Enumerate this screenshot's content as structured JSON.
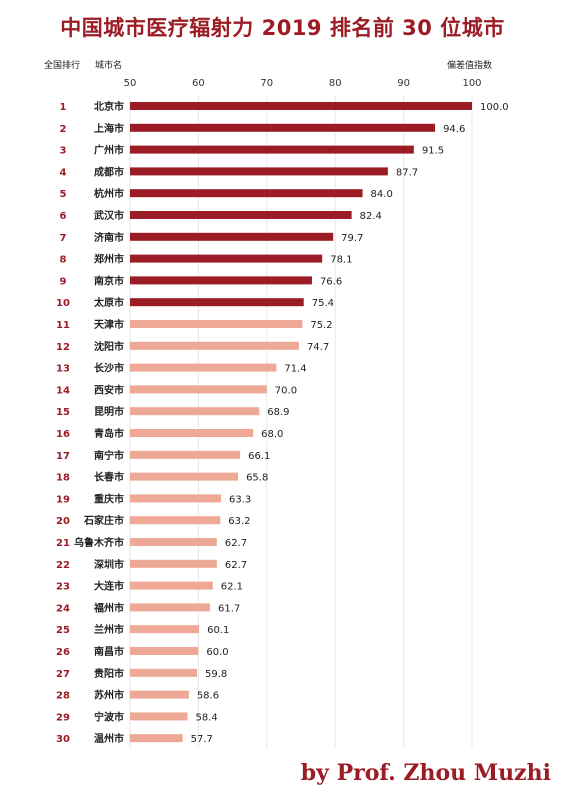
{
  "title": "中国城市医疗辐射力 2019 排名前 30 位城市",
  "headers": {
    "rank": "全国排行",
    "city": "城市名",
    "index": "偏差值指数"
  },
  "signature": "by Prof. Zhou Muzhi",
  "colors": {
    "top10": "#9b1c24",
    "rest": "#eda896",
    "rank_text": "#9b1c24"
  },
  "chart_data": {
    "type": "bar",
    "orientation": "horizontal",
    "title": "中国城市医疗辐射力 2019 排名前 30 位城市",
    "xlim": [
      50,
      100
    ],
    "xticks": [
      50,
      60,
      70,
      80,
      90,
      100
    ],
    "grid": true,
    "ranks": [
      1,
      2,
      3,
      4,
      5,
      6,
      7,
      8,
      9,
      10,
      11,
      12,
      13,
      14,
      15,
      16,
      17,
      18,
      19,
      20,
      21,
      22,
      23,
      24,
      25,
      26,
      27,
      28,
      29,
      30
    ],
    "categories": [
      "北京市",
      "上海市",
      "广州市",
      "成都市",
      "杭州市",
      "武汉市",
      "济南市",
      "郑州市",
      "南京市",
      "太原市",
      "天津市",
      "沈阳市",
      "长沙市",
      "西安市",
      "昆明市",
      "青岛市",
      "南宁市",
      "长春市",
      "重庆市",
      "石家庄市",
      "乌鲁木齐市",
      "深圳市",
      "大连市",
      "福州市",
      "兰州市",
      "南昌市",
      "贵阳市",
      "苏州市",
      "宁波市",
      "温州市"
    ],
    "values": [
      100.0,
      94.6,
      91.5,
      87.7,
      84.0,
      82.4,
      79.7,
      78.1,
      76.6,
      75.4,
      75.2,
      74.7,
      71.4,
      70.0,
      68.9,
      68.0,
      66.1,
      65.8,
      63.3,
      63.2,
      62.7,
      62.7,
      62.1,
      61.7,
      60.1,
      60.0,
      59.8,
      58.6,
      58.4,
      57.7
    ],
    "value_labels": [
      "100.0",
      "94.6",
      "91.5",
      "87.7",
      "84.0",
      "82.4",
      "79.7",
      "78.1",
      "76.6",
      "75.4",
      "75.2",
      "74.7",
      "71.4",
      "70.0",
      "68.9",
      "68.0",
      "66.1",
      "65.8",
      "63.3",
      "63.2",
      "62.7",
      "62.7",
      "62.1",
      "61.7",
      "60.1",
      "60.0",
      "59.8",
      "58.6",
      "58.4",
      "57.7"
    ]
  }
}
